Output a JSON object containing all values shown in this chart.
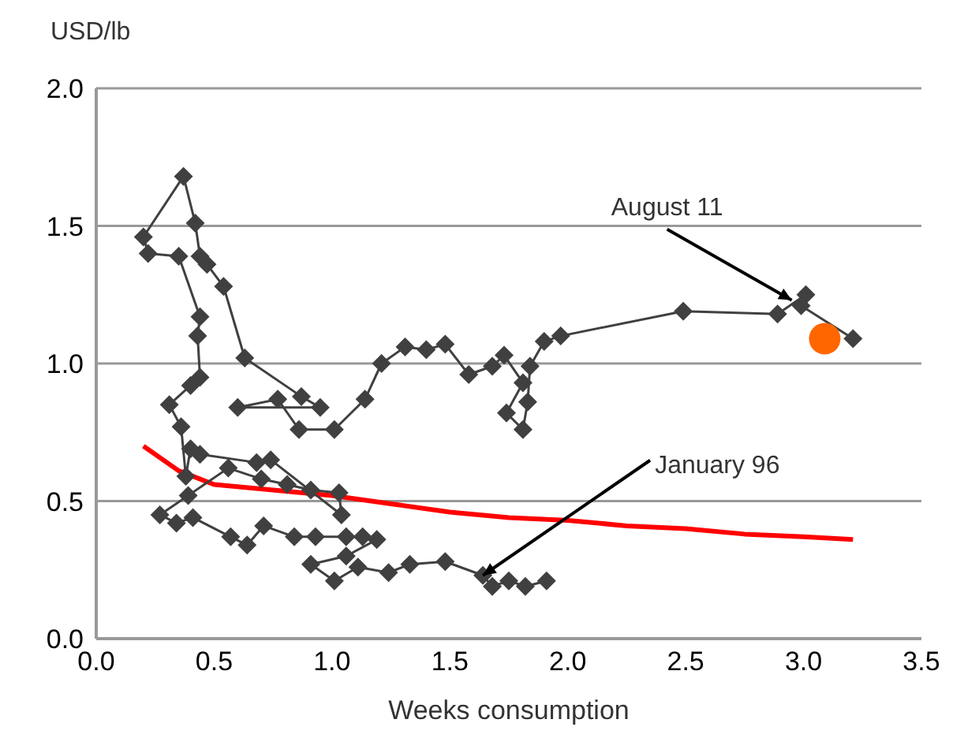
{
  "chart_data": {
    "type": "line",
    "xlabel": "Weeks consumption",
    "ylabel": "USD/lb",
    "xlim": [
      0,
      3.5
    ],
    "ylim": [
      0,
      2
    ],
    "xticks": [
      {
        "value": 0,
        "label": "0.0"
      },
      {
        "value": 0.5,
        "label": "0.5"
      },
      {
        "value": 1,
        "label": "1.0"
      },
      {
        "value": 1.5,
        "label": "1.5"
      },
      {
        "value": 2,
        "label": "2.0"
      },
      {
        "value": 2.5,
        "label": "2.5"
      },
      {
        "value": 3,
        "label": "3.0"
      },
      {
        "value": 3.5,
        "label": "3.5"
      }
    ],
    "yticks": [
      {
        "value": 0,
        "label": "0.0"
      },
      {
        "value": 0.5,
        "label": "0.5"
      },
      {
        "value": 1,
        "label": "1.0"
      },
      {
        "value": 1.5,
        "label": "1.5"
      },
      {
        "value": 2,
        "label": "2.0"
      }
    ],
    "grid": "y",
    "legend": false,
    "series": [
      {
        "color": "#ff0000",
        "marker": "none",
        "x": [
          0.2,
          0.35,
          0.5,
          0.75,
          1.0,
          1.25,
          1.5,
          1.75,
          2.0,
          2.25,
          2.5,
          2.75,
          3.0,
          3.21
        ],
        "values": [
          0.7,
          0.61,
          0.56,
          0.54,
          0.52,
          0.49,
          0.46,
          0.44,
          0.43,
          0.41,
          0.4,
          0.38,
          0.37,
          0.36
        ]
      },
      {
        "color": "#404040",
        "marker": "diamond",
        "x": [
          1.91,
          1.82,
          1.75,
          1.68,
          1.64,
          1.48,
          1.33,
          1.24,
          1.11,
          1.01,
          0.91,
          1.06,
          1.19,
          1.13,
          1.06,
          0.93,
          0.84,
          0.71,
          0.64,
          0.57,
          0.41,
          0.34,
          0.27,
          0.39,
          0.56,
          0.7,
          0.81,
          0.91,
          1.03,
          1.04,
          0.74,
          0.68,
          0.44,
          0.4,
          0.38,
          0.36,
          0.31,
          0.4,
          0.44,
          0.43,
          0.44,
          0.35,
          0.22,
          0.2,
          0.37,
          0.42,
          0.44,
          0.47,
          0.54,
          0.63,
          0.87,
          0.95,
          0.6,
          0.77,
          0.86,
          1.01,
          1.14,
          1.21,
          1.31,
          1.4,
          1.48,
          1.58,
          1.68,
          1.73,
          1.81,
          1.74,
          1.81,
          1.83,
          1.84,
          1.9,
          1.97,
          2.49,
          2.89,
          3.01,
          2.99,
          3.21
        ],
        "values": [
          0.21,
          0.19,
          0.21,
          0.19,
          0.23,
          0.28,
          0.27,
          0.24,
          0.26,
          0.21,
          0.27,
          0.3,
          0.36,
          0.37,
          0.37,
          0.37,
          0.37,
          0.41,
          0.34,
          0.37,
          0.44,
          0.42,
          0.45,
          0.52,
          0.62,
          0.58,
          0.56,
          0.54,
          0.53,
          0.45,
          0.65,
          0.64,
          0.67,
          0.69,
          0.59,
          0.77,
          0.85,
          0.92,
          0.95,
          1.1,
          1.17,
          1.39,
          1.4,
          1.46,
          1.68,
          1.51,
          1.39,
          1.36,
          1.28,
          1.02,
          0.88,
          0.84,
          0.84,
          0.87,
          0.76,
          0.76,
          0.87,
          1.0,
          1.06,
          1.05,
          1.07,
          0.96,
          0.99,
          1.03,
          0.93,
          0.82,
          0.76,
          0.86,
          0.99,
          1.08,
          1.1,
          1.19,
          1.18,
          1.25,
          1.21,
          1.09
        ]
      },
      {
        "type": "scatter",
        "color": "#ff6600",
        "marker": "circle",
        "x": [
          3.09
        ],
        "values": [
          1.09
        ]
      }
    ],
    "annotations": [
      {
        "text": "August 11",
        "x": 2.95,
        "y": 1.23
      },
      {
        "text": "January 96",
        "x": 1.64,
        "y": 0.23
      }
    ]
  }
}
